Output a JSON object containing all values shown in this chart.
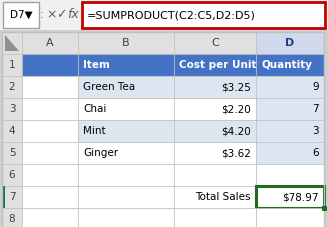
{
  "formula_bar_cell": "D7",
  "formula_bar_formula": "=SUMPRODUCT(C2:C5,D2:D5)",
  "col_letters": [
    "",
    "A",
    "B",
    "C",
    "D"
  ],
  "row_numbers": [
    "1",
    "2",
    "3",
    "4",
    "5",
    "6",
    "7",
    "8"
  ],
  "header_row": [
    "Item",
    "Cost per Unit",
    "Quantity"
  ],
  "data_rows": [
    [
      "Green Tea",
      "$3.25",
      "9"
    ],
    [
      "Chai",
      "$2.20",
      "7"
    ],
    [
      "Mint",
      "$4.20",
      "3"
    ],
    [
      "Ginger",
      "$3.62",
      "6"
    ]
  ],
  "total_label": "Total Sales",
  "total_value": "$78.97",
  "header_bg": "#4472C4",
  "header_fg": "#FFFFFF",
  "data_bg_light": "#DCE6F1",
  "data_bg_white": "#FFFFFF",
  "total_cell_border_color": "#1F6B1F",
  "formula_border_color": "#C00000",
  "cell_border_color": "#BFBFBF",
  "col_header_bg": "#E0E0E0",
  "selected_col_D_bg": "#D0D8EC",
  "row_left_border": "#217346",
  "background": "#D0D0D0",
  "fb_bg": "#FFFFFF",
  "fb_cell_bg": "#FFFFFF"
}
